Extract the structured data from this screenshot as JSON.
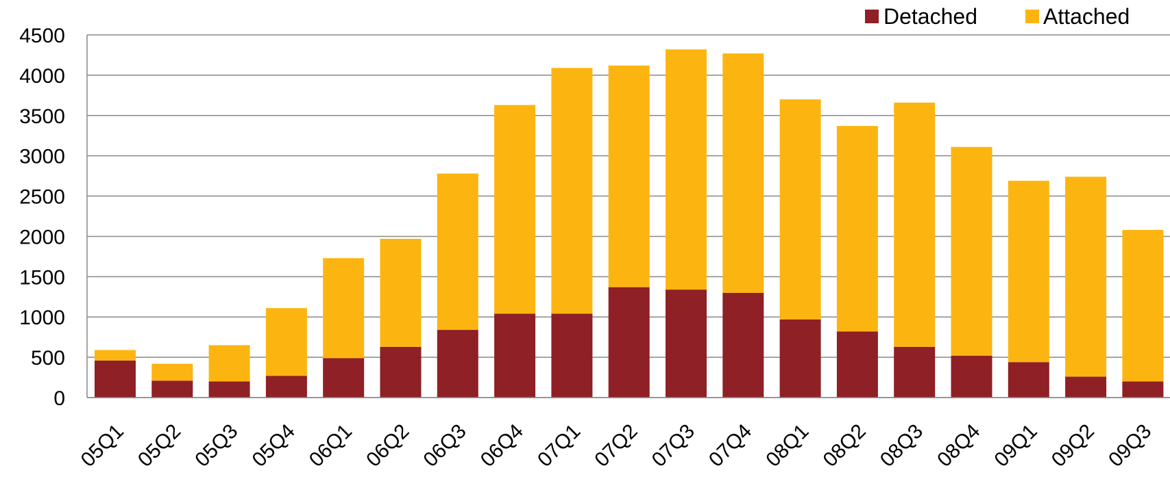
{
  "chart_data": {
    "type": "bar",
    "stacked": true,
    "categories": [
      "05Q1",
      "05Q2",
      "05Q3",
      "05Q4",
      "06Q1",
      "06Q2",
      "06Q3",
      "06Q4",
      "07Q1",
      "07Q2",
      "07Q3",
      "07Q4",
      "08Q1",
      "08Q2",
      "08Q3",
      "08Q4",
      "09Q1",
      "09Q2",
      "09Q3"
    ],
    "series": [
      {
        "name": "Detached",
        "color": "#8E2026",
        "values": [
          460,
          210,
          200,
          270,
          490,
          630,
          840,
          1040,
          1040,
          1370,
          1340,
          1300,
          970,
          820,
          630,
          520,
          440,
          260,
          200
        ]
      },
      {
        "name": "Attached",
        "color": "#FCB510",
        "values": [
          130,
          210,
          450,
          840,
          1240,
          1340,
          1940,
          2590,
          3050,
          2750,
          2980,
          2970,
          2730,
          2550,
          3030,
          2590,
          2250,
          2480,
          1880
        ]
      }
    ],
    "title": "",
    "xlabel": "",
    "ylabel": "",
    "ylim": [
      0,
      4500
    ],
    "yticks": [
      0,
      500,
      1000,
      1500,
      2000,
      2500,
      3000,
      3500,
      4000,
      4500
    ],
    "grid": true,
    "legend_position": "top-right",
    "x_tick_rotation": -45
  }
}
